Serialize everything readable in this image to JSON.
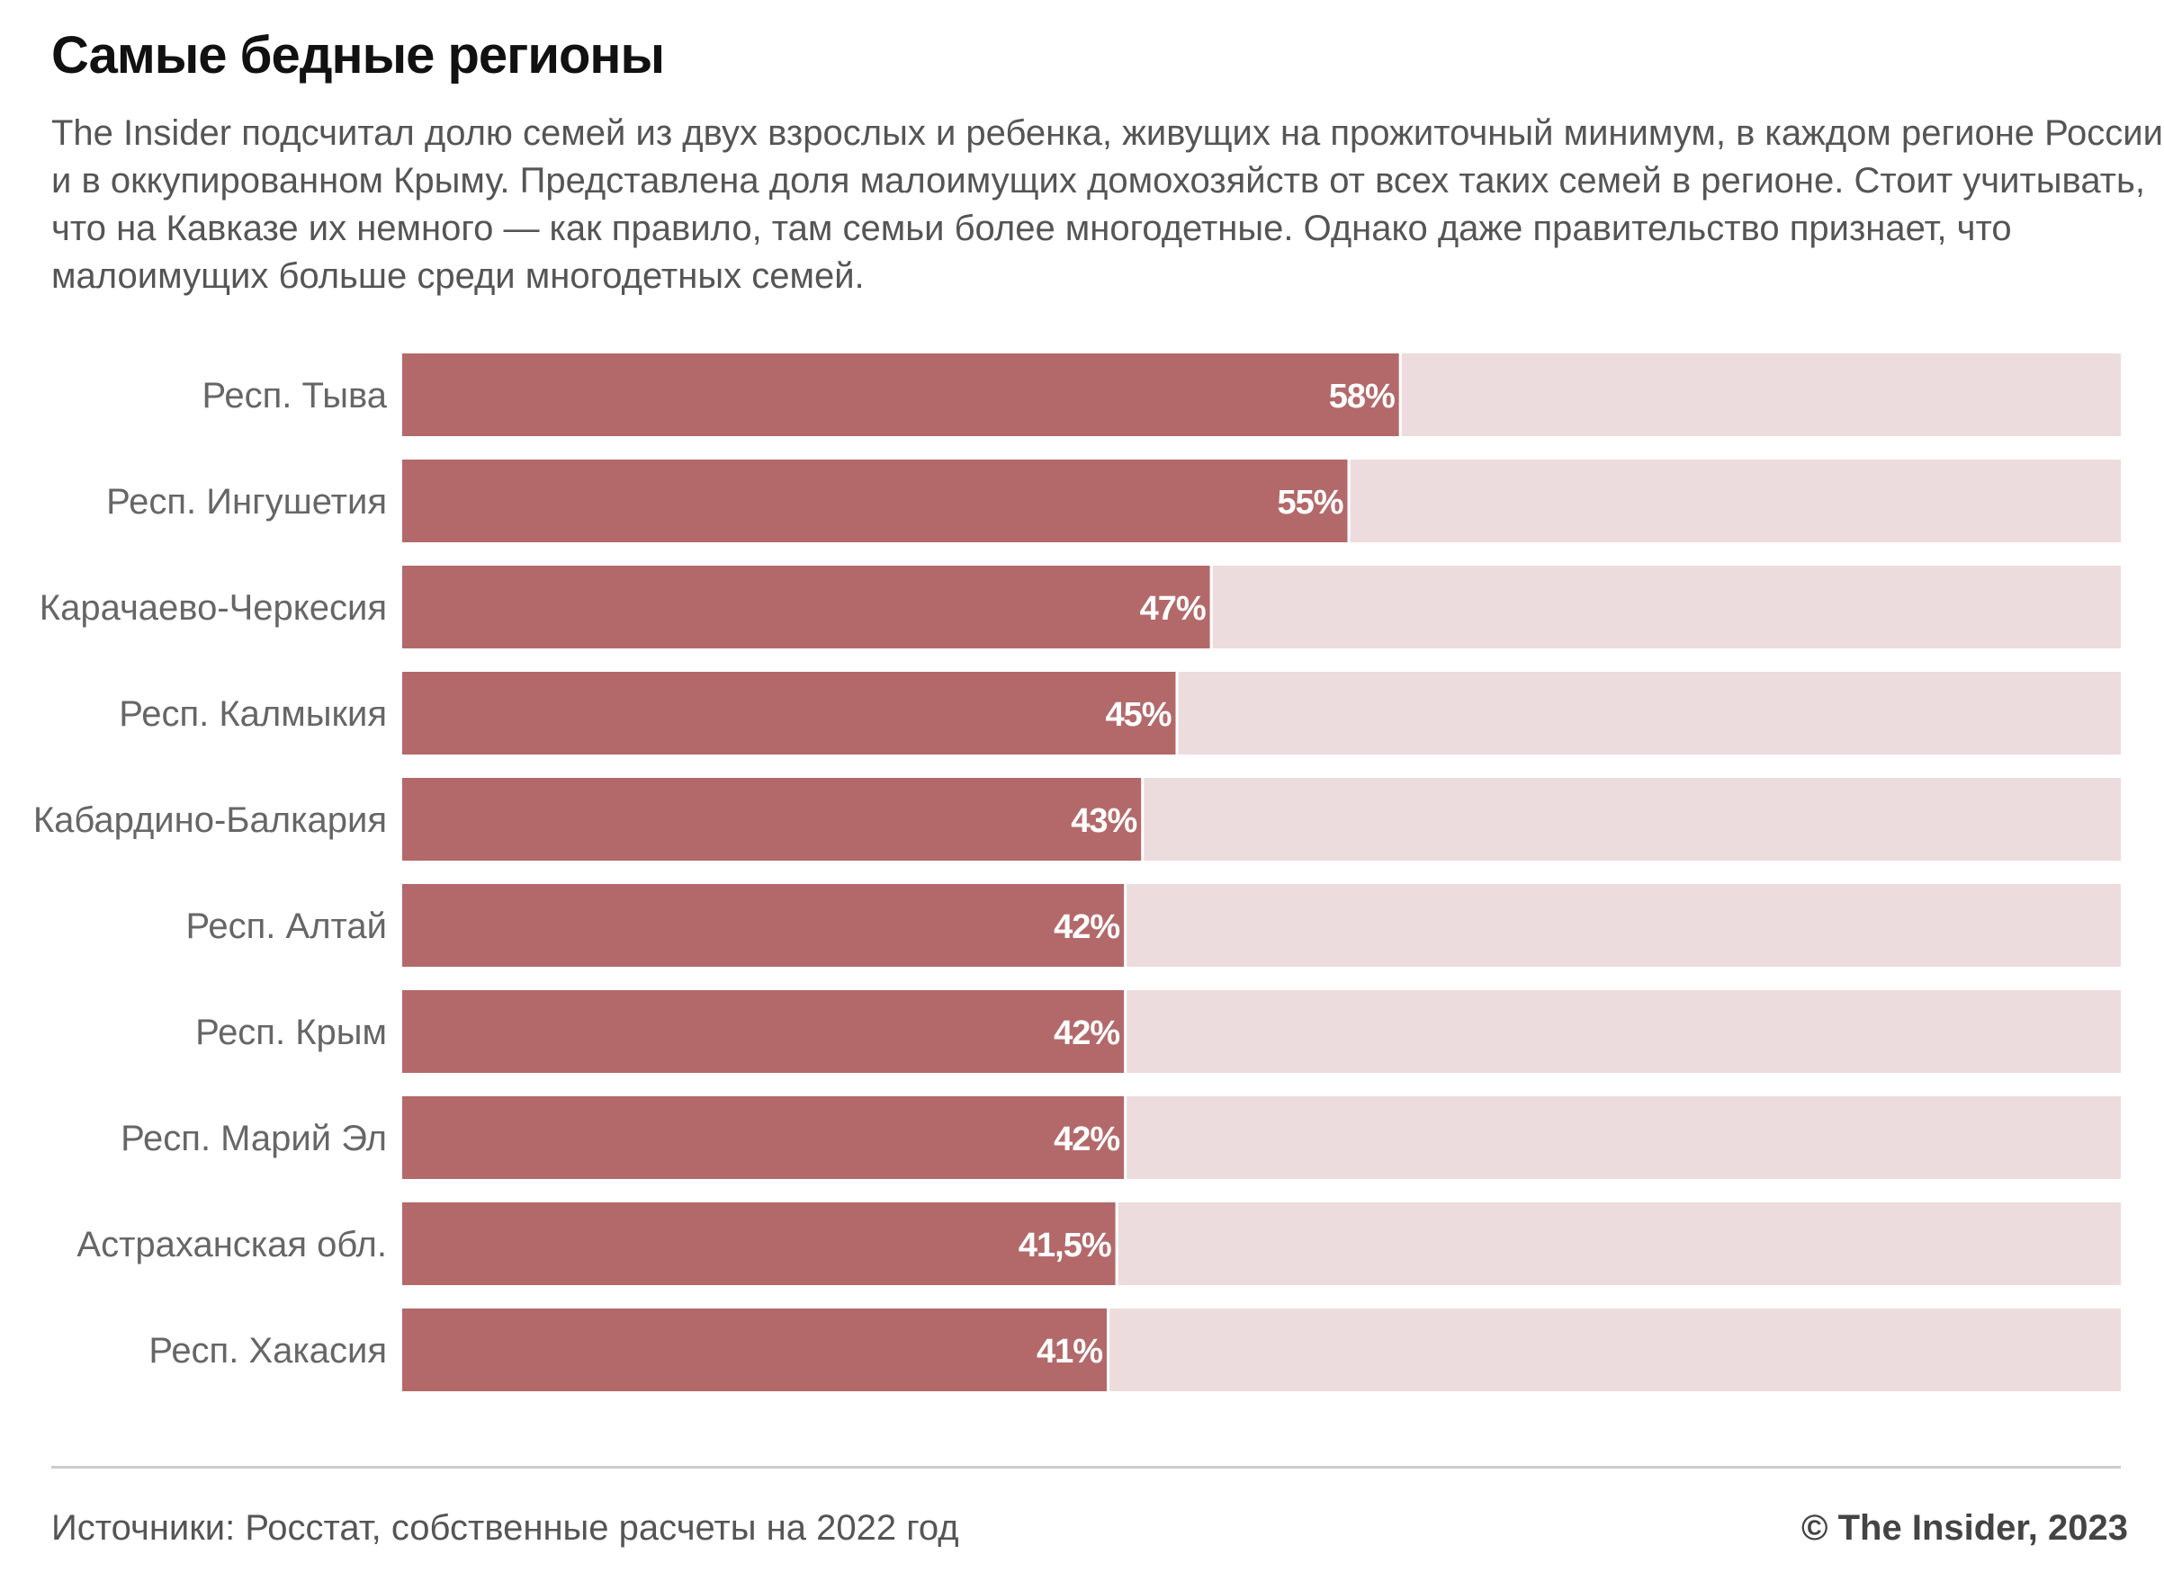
{
  "header": {
    "title": "Самые бедные регионы",
    "subtitle_lines": [
      "The Insider подсчитал долю семей из двух взрослых и ребенка, живущих на прожиточный минимум, в каждом регионе России",
      "и в оккупированном Крыму. Представлена доля малоимущих домохозяйств от всех таких семей в регионе. Стоит учитывать,",
      "что на Кавказе их немного — как правило, там семьи более многодетные. Однако даже правительство признает, что",
      "малоимущих больше среди многодетных семей."
    ]
  },
  "chart_data": {
    "type": "bar",
    "orientation": "horizontal",
    "title": "Самые бедные регионы",
    "xlim": [
      0,
      100
    ],
    "unit": "%",
    "categories": [
      "Респ. Тыва",
      "Респ. Ингушетия",
      "Карачаево-Черкесия",
      "Респ. Калмыкия",
      "Кабардино-Балкария",
      "Респ. Алтай",
      "Респ. Крым",
      "Респ. Марий Эл",
      "Астраханская обл.",
      "Респ. Хакасия"
    ],
    "values": [
      58,
      55,
      47,
      45,
      43,
      42,
      42,
      42,
      41.5,
      41
    ],
    "data_labels": [
      "58%",
      "55%",
      "47%",
      "45%",
      "43%",
      "42%",
      "42%",
      "42%",
      "41,5%",
      "41%"
    ],
    "colors": {
      "bar": "#b3696a",
      "track": "#eddcdd",
      "label": "#ffffff",
      "category_text": "#666666"
    },
    "grid": false,
    "legend": "none"
  },
  "footer": {
    "source": "Источники: Росстат, собственные расчеты на 2022 год",
    "copyright": "© The Insider, 2023"
  }
}
